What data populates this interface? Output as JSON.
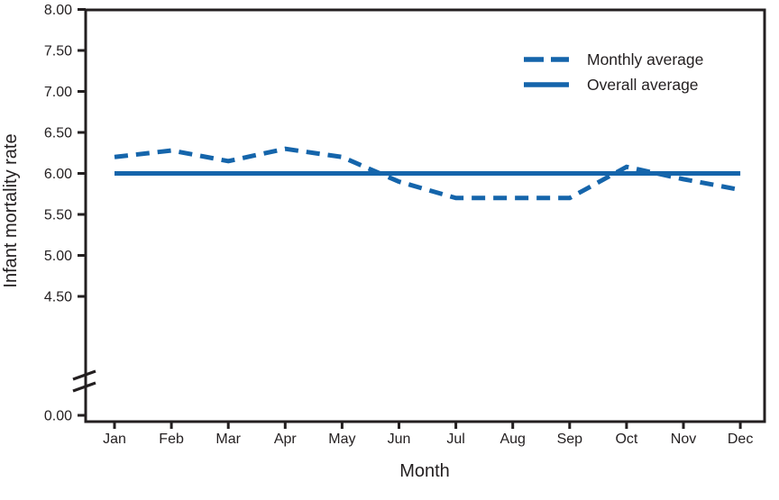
{
  "chart_data": {
    "type": "line",
    "title": "",
    "xlabel": "Month",
    "ylabel": "Infant mortality rate",
    "categories": [
      "Jan",
      "Feb",
      "Mar",
      "Apr",
      "May",
      "Jun",
      "Jul",
      "Aug",
      "Sep",
      "Oct",
      "Nov",
      "Dec"
    ],
    "series": [
      {
        "name": "Monthly average",
        "style": "dashed",
        "values": [
          6.2,
          6.28,
          6.15,
          6.3,
          6.2,
          5.9,
          5.7,
          5.7,
          5.7,
          6.08,
          5.93,
          5.8
        ]
      },
      {
        "name": "Overall average",
        "style": "solid",
        "value": 6.0
      }
    ],
    "y_ticks": [
      {
        "label": "8.00",
        "value": 8.0
      },
      {
        "label": "7.50",
        "value": 7.5
      },
      {
        "label": "7.00",
        "value": 7.0
      },
      {
        "label": "6.50",
        "value": 6.5
      },
      {
        "label": "6.00",
        "value": 6.0
      },
      {
        "label": "5.50",
        "value": 5.5
      },
      {
        "label": "5.00",
        "value": 5.0
      },
      {
        "label": "4.50",
        "value": 4.5
      },
      {
        "label": "0.00",
        "value": 0.0
      }
    ],
    "ylim": [
      0,
      8
    ],
    "axis_break": true,
    "grid": false,
    "legend_position": "top-right",
    "colors": {
      "line": "#1565ab",
      "axis": "#231f20"
    }
  }
}
